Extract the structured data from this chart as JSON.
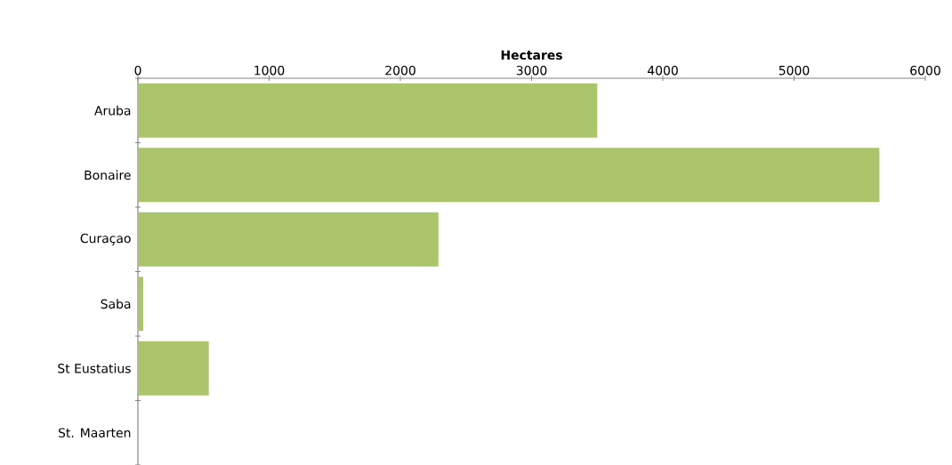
{
  "chart_data": {
    "type": "bar",
    "orientation": "horizontal",
    "xlabel": "Hectares",
    "categories": [
      "Aruba",
      "Bonaire",
      "Curaçao",
      "Saba",
      "St Eustatius",
      "St. Maarten"
    ],
    "values": [
      3500,
      5650,
      2290,
      40,
      540,
      0
    ],
    "color": "#abc56c",
    "xlim": [
      0,
      6000
    ],
    "xticks": [
      0,
      1000,
      2000,
      3000,
      4000,
      5000,
      6000
    ]
  }
}
